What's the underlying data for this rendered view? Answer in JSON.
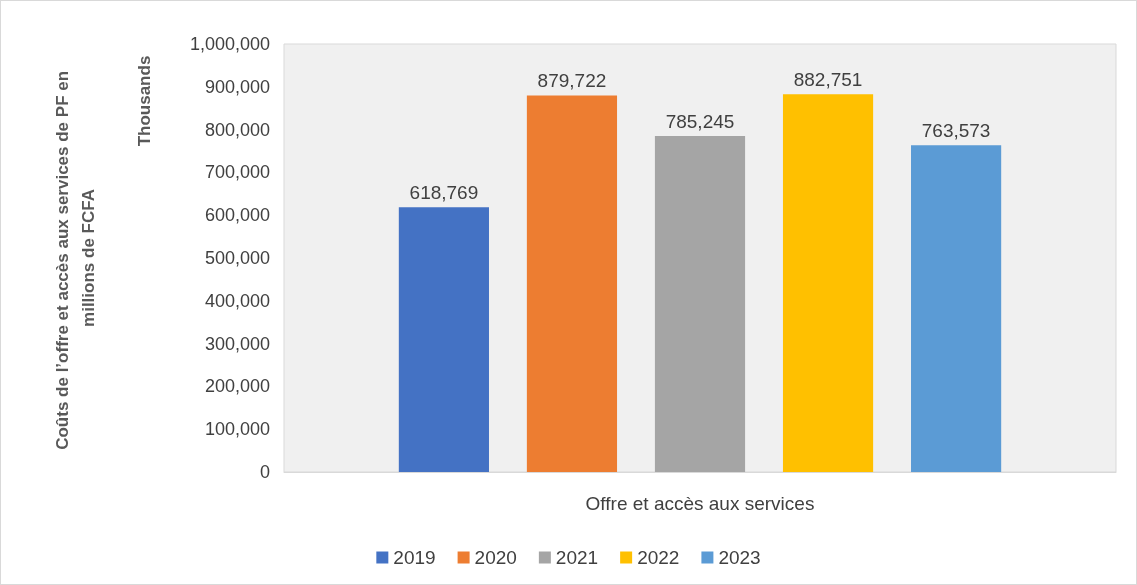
{
  "chart_data": {
    "type": "bar",
    "annotations": [
      "Coûts de l’offre et accès aux services de PF en millions de FCFA",
      "Thousands"
    ],
    "categories": [
      "Offre et accès aux services"
    ],
    "series": [
      {
        "name": "2019",
        "color": "#4472c4",
        "values": [
          618769
        ],
        "value_labels": [
          "618,769"
        ]
      },
      {
        "name": "2020",
        "color": "#ed7d31",
        "values": [
          879722
        ],
        "value_labels": [
          "879,722"
        ]
      },
      {
        "name": "2021",
        "color": "#a5a5a5",
        "values": [
          785245
        ],
        "value_labels": [
          "785,245"
        ]
      },
      {
        "name": "2022",
        "color": "#ffc000",
        "values": [
          882751
        ],
        "value_labels": [
          "882,751"
        ]
      },
      {
        "name": "2023",
        "color": "#5b9bd5",
        "values": [
          763573
        ],
        "value_labels": [
          "763,573"
        ]
      }
    ],
    "ylim": [
      0,
      1000000
    ],
    "yticks": [
      {
        "value": 0,
        "label": "0"
      },
      {
        "value": 100000,
        "label": "100,000"
      },
      {
        "value": 200000,
        "label": "200,000"
      },
      {
        "value": 300000,
        "label": "300,000"
      },
      {
        "value": 400000,
        "label": "400,000"
      },
      {
        "value": 500000,
        "label": "500,000"
      },
      {
        "value": 600000,
        "label": "600,000"
      },
      {
        "value": 700000,
        "label": "700,000"
      },
      {
        "value": 800000,
        "label": "800,000"
      },
      {
        "value": 900000,
        "label": "900,000"
      },
      {
        "value": 1000000,
        "label": "1,000,000"
      }
    ],
    "grid": false,
    "legend": "bottom"
  }
}
